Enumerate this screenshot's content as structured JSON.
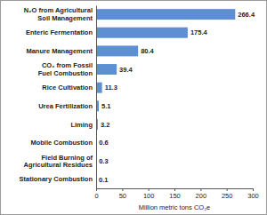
{
  "chart_data": {
    "type": "bar",
    "orientation": "horizontal",
    "categories": [
      "N₂O from Agricultural\nSoil Management",
      "Enteric Fermentation",
      "Manure Management",
      "CO₂ from Fossil\nFuel Combustion",
      "Rice Cultivation",
      "Urea Fertilization",
      "Liming",
      "Mobile Combustion",
      "Field Burning of\nAgricultural Residues",
      "Stationary Combustion"
    ],
    "values": [
      266.4,
      175.4,
      80.4,
      39.4,
      11.3,
      5.1,
      3.2,
      0.6,
      0.3,
      0.1
    ],
    "color": "#5f8fd3",
    "xlabel": "Million metric tons CO₂e",
    "xlim": [
      0,
      300
    ],
    "xticks": [
      0,
      50,
      100,
      150,
      200,
      250,
      300
    ],
    "data_labels": true,
    "grid": false
  }
}
